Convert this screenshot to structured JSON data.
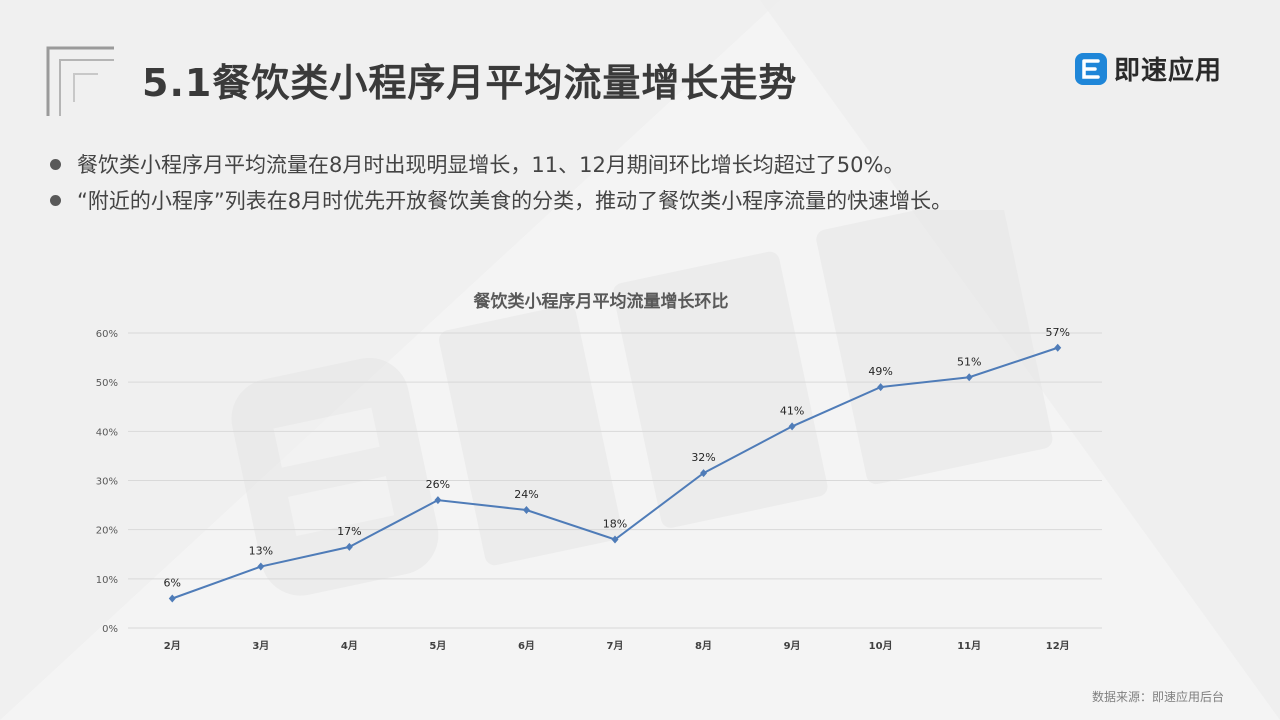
{
  "slide": {
    "title": "5.1餐饮类小程序月平均流量增长走势",
    "brand": "即速应用",
    "bullets": [
      "餐饮类小程序月平均流量在8月时出现明显增长，11、12月期间环比增长均超过了50%。",
      "“附近的小程序”列表在8月时优先开放餐饮美食的分类，推动了餐饮类小程序流量的快速增长。"
    ],
    "source": "数据来源：即速应用后台",
    "colors": {
      "line": "#4f7cb8",
      "grid": "#d9d9d9",
      "brand_icon": "#1f86d8"
    }
  },
  "chart_data": {
    "type": "line",
    "title": "餐饮类小程序月平均流量增长环比",
    "categories": [
      "2月",
      "3月",
      "4月",
      "5月",
      "6月",
      "7月",
      "8月",
      "9月",
      "10月",
      "11月",
      "12月"
    ],
    "values": [
      6,
      12.5,
      16.5,
      26,
      24,
      18,
      31.5,
      41,
      49,
      51,
      57
    ],
    "data_labels": [
      "6%",
      "13%",
      "17%",
      "26%",
      "24%",
      "18%",
      "32%",
      "41%",
      "49%",
      "51%",
      "57%"
    ],
    "y_ticks": [
      "0%",
      "10%",
      "20%",
      "30%",
      "40%",
      "50%",
      "60%"
    ],
    "ylim": [
      0,
      60
    ],
    "grid": true,
    "legend": "none",
    "marker": "diamond"
  }
}
